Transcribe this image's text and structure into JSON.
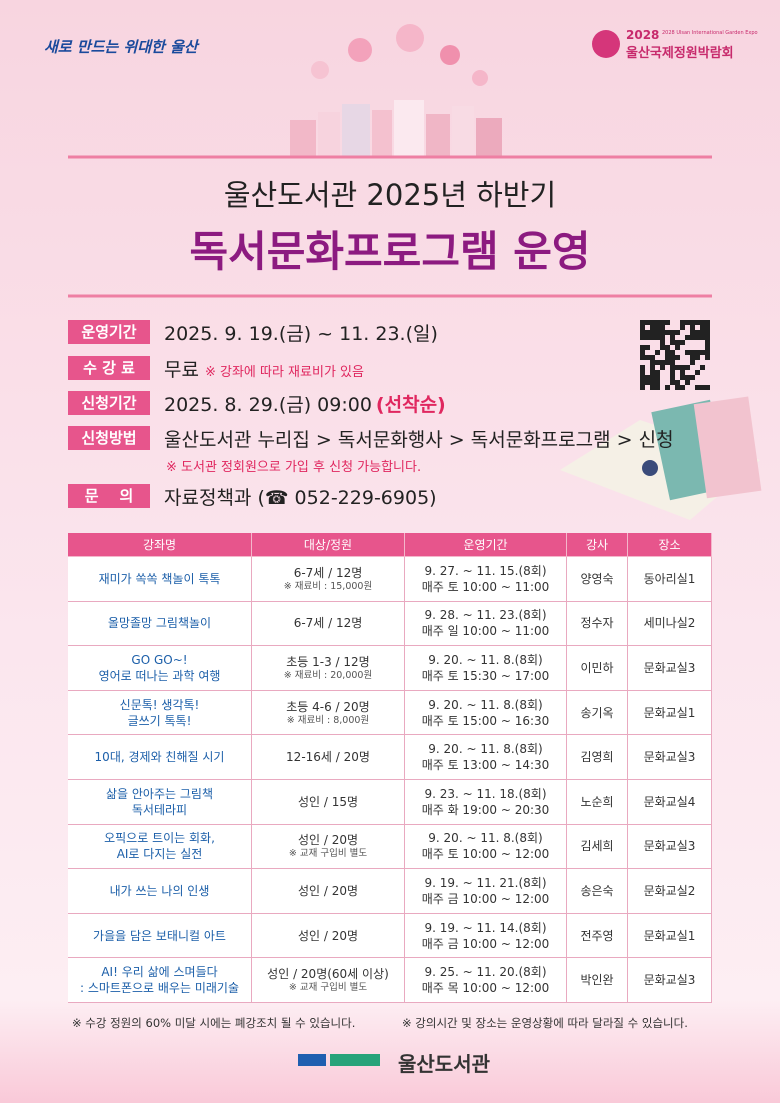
{
  "header": {
    "slogan": "새로 만드는 위대한 울산",
    "expo_year": "2028",
    "expo_en": "2028 Ulsan International Garden Expo",
    "expo_name": "울산국제정원박람회"
  },
  "title": {
    "line1": "울산도서관 2025년 하반기",
    "line2": "독서문화프로그램 운영"
  },
  "info": [
    {
      "label": "운영기간",
      "text": "2025. 9. 19.(금) ~ 11. 23.(일)"
    },
    {
      "label": "수 강 료",
      "text": "무료",
      "note": "※ 강좌에 따라 재료비가 있음"
    },
    {
      "label": "신청기간",
      "text": "2025. 8. 29.(금) 09:00",
      "highlight": "(선착순)"
    },
    {
      "label": "신청방법",
      "text": "울산도서관 누리집 > 독서문화행사 > 독서문화프로그램 > 신청",
      "subnote": "※ 도서관 정회원으로 가입 후 신청 가능합니다."
    },
    {
      "label": "문    의",
      "text": "자료정책과 (☎ 052-229-6905)"
    }
  ],
  "table": {
    "columns": [
      "강좌명",
      "대상/정원",
      "운영기간",
      "강사",
      "장소"
    ],
    "rows": [
      {
        "name": [
          "재미가 쏙쏙 책놀이 톡톡"
        ],
        "target": "6-7세 / 12명",
        "target_note": "※ 재료비 : 15,000원",
        "period": "9. 27. ~ 11. 15.(8회)",
        "schedule": "매주 토 10:00 ~ 11:00",
        "instructor": "양영숙",
        "place": "동아리실1"
      },
      {
        "name": [
          "올망졸망 그림책놀이"
        ],
        "target": "6-7세 / 12명",
        "period": "9. 28. ~ 11. 23.(8회)",
        "schedule": "매주 일 10:00 ~ 11:00",
        "instructor": "정수자",
        "place": "세미나실2"
      },
      {
        "name": [
          "GO GO~!",
          "영어로 떠나는 과학 여행"
        ],
        "target": "초등 1-3 / 12명",
        "target_note": "※ 재료비 : 20,000원",
        "period": "9. 20. ~ 11. 8.(8회)",
        "schedule": "매주 토 15:30 ~ 17:00",
        "instructor": "이민하",
        "place": "문화교실3"
      },
      {
        "name": [
          "신문톡! 생각톡!",
          "글쓰기 톡톡!"
        ],
        "target": "초등 4-6 / 20명",
        "target_note": "※ 재료비 : 8,000원",
        "period": "9. 20. ~ 11. 8.(8회)",
        "schedule": "매주 토 15:00 ~ 16:30",
        "instructor": "송기옥",
        "place": "문화교실1"
      },
      {
        "name": [
          "10대, 경제와 친해질 시기"
        ],
        "target": "12-16세 / 20명",
        "period": "9. 20. ~ 11. 8.(8회)",
        "schedule": "매주 토 13:00 ~ 14:30",
        "instructor": "김영희",
        "place": "문화교실3"
      },
      {
        "name": [
          "삶을 안아주는 그림책",
          "독서테라피"
        ],
        "target": "성인 / 15명",
        "period": "9. 23. ~ 11. 18.(8회)",
        "schedule": "매주 화 19:00 ~ 20:30",
        "instructor": "노순희",
        "place": "문화교실4"
      },
      {
        "name": [
          "오픽으로 트이는 회화,",
          "AI로 다지는 실전"
        ],
        "target": "성인 / 20명",
        "target_note": "※ 교재 구입비 별도",
        "period": "9. 20. ~ 11. 8.(8회)",
        "schedule": "매주 토 10:00 ~ 12:00",
        "instructor": "김세희",
        "place": "문화교실3"
      },
      {
        "name": [
          "내가 쓰는 나의 인생"
        ],
        "target": "성인 / 20명",
        "period": "9. 19. ~ 11. 21.(8회)",
        "schedule": "매주 금 10:00 ~ 12:00",
        "instructor": "송은숙",
        "place": "문화교실2"
      },
      {
        "name": [
          "가을을 담은 보태니컬 아트"
        ],
        "target": "성인 / 20명",
        "period": "9. 19. ~ 11. 14.(8회)",
        "schedule": "매주 금 10:00 ~ 12:00",
        "instructor": "전주영",
        "place": "문화교실1"
      },
      {
        "name": [
          "AI! 우리 삶에 스며들다",
          ": 스마트폰으로 배우는 미래기술"
        ],
        "target": "성인 / 20명(60세 이상)",
        "target_note": "※ 교재 구입비 별도",
        "period": "9. 25. ~ 11. 20.(8회)",
        "schedule": "매주 목 10:00 ~ 12:00",
        "instructor": "박인완",
        "place": "문화교실3"
      }
    ]
  },
  "notes": [
    "※ 수강 정원의 60% 미달 시에는 폐강조치 될 수 있습니다.",
    "※ 강의시간 및 장소는 운영상황에 따라 달라질 수 있습니다."
  ],
  "footer": {
    "logo": "울산도서관"
  }
}
